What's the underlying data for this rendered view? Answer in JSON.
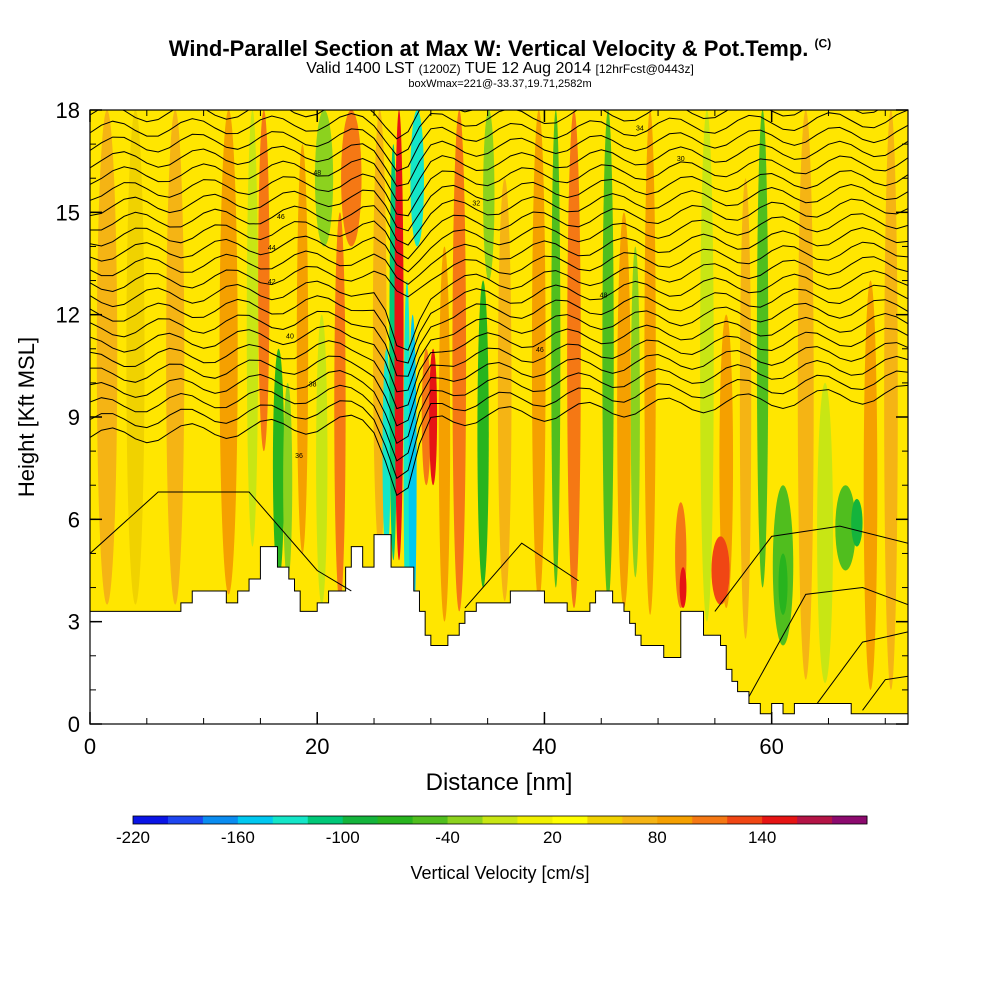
{
  "header": {
    "title": "Wind-Parallel Section at Max W: Vertical Velocity & Pot.Temp.",
    "copyright": "(C)",
    "valid_prefix": "Valid 1400 LST",
    "valid_utc": "(1200Z)",
    "valid_date": "TUE 12 Aug 2014",
    "forecast": "[12hrFcst@0443z]",
    "box_info": "boxWmax=221@-33.37,19.71,2582m"
  },
  "chart_data": {
    "type": "heatmap",
    "title": "Wind-Parallel Section at Max W: Vertical Velocity & Pot.Temp.",
    "xlabel": "Distance [nm]",
    "ylabel": "Height [Kft MSL]",
    "xlim": [
      0,
      72
    ],
    "ylim": [
      0,
      18
    ],
    "x_ticks": [
      0,
      20,
      40,
      60
    ],
    "x_tick_labels": [
      "0",
      "20",
      "40",
      "60"
    ],
    "y_ticks": [
      0,
      3,
      6,
      9,
      12,
      15,
      18
    ],
    "y_tick_labels": [
      "0",
      "3",
      "6",
      "9",
      "12",
      "15",
      "18"
    ],
    "colorbar": {
      "label": "Vertical Velocity [cm/s]",
      "tick_labels": [
        "-220",
        "-160",
        "-100",
        "-40",
        "20",
        "80",
        "140"
      ],
      "tick_values": [
        -220,
        -160,
        -100,
        -40,
        20,
        80,
        140
      ],
      "levels": [
        -220,
        -200,
        -180,
        -160,
        -140,
        -120,
        -100,
        -80,
        -60,
        -40,
        -20,
        0,
        20,
        40,
        60,
        80,
        100,
        120,
        140,
        160,
        180
      ],
      "colors": [
        "#0a14e6",
        "#1e46f0",
        "#0a8cf0",
        "#00c8f0",
        "#14e6c8",
        "#00c878",
        "#14b43c",
        "#28b41e",
        "#50be1e",
        "#8cd21e",
        "#c8e614",
        "#f0f000",
        "#ffff00",
        "#f0d200",
        "#f5b414",
        "#f5a000",
        "#f57814",
        "#f04614",
        "#e61414",
        "#b41446",
        "#8c0a6e"
      ]
    },
    "terrain": [
      [
        0,
        3.3
      ],
      [
        8,
        3.3
      ],
      [
        8,
        3.55
      ],
      [
        9,
        3.55
      ],
      [
        9,
        3.9
      ],
      [
        12,
        3.9
      ],
      [
        12,
        3.55
      ],
      [
        13,
        3.55
      ],
      [
        13,
        3.9
      ],
      [
        14,
        3.9
      ],
      [
        14,
        4.25
      ],
      [
        15,
        4.25
      ],
      [
        15,
        5.2
      ],
      [
        16.5,
        5.2
      ],
      [
        16.5,
        4.6
      ],
      [
        17.5,
        4.6
      ],
      [
        17.5,
        4.25
      ],
      [
        18,
        4.25
      ],
      [
        18,
        3.9
      ],
      [
        18.5,
        3.9
      ],
      [
        18.5,
        3.3
      ],
      [
        20,
        3.3
      ],
      [
        20,
        3.55
      ],
      [
        21,
        3.55
      ],
      [
        21,
        3.9
      ],
      [
        22.5,
        3.9
      ],
      [
        22.5,
        4.6
      ],
      [
        23,
        4.6
      ],
      [
        23,
        5.2
      ],
      [
        24,
        5.2
      ],
      [
        24,
        4.6
      ],
      [
        25,
        4.6
      ],
      [
        25,
        5.55
      ],
      [
        26.5,
        5.55
      ],
      [
        26.5,
        4.6
      ],
      [
        28.5,
        4.6
      ],
      [
        28.5,
        3.9
      ],
      [
        29,
        3.9
      ],
      [
        29,
        3.3
      ],
      [
        29.5,
        3.3
      ],
      [
        29.5,
        2.6
      ],
      [
        30,
        2.6
      ],
      [
        30,
        2.3
      ],
      [
        31.5,
        2.3
      ],
      [
        31.5,
        2.6
      ],
      [
        32.5,
        2.6
      ],
      [
        32.5,
        2.95
      ],
      [
        33,
        2.95
      ],
      [
        33,
        3.3
      ],
      [
        34,
        3.3
      ],
      [
        34,
        3.55
      ],
      [
        37,
        3.55
      ],
      [
        37,
        3.9
      ],
      [
        40,
        3.9
      ],
      [
        40,
        3.55
      ],
      [
        42,
        3.55
      ],
      [
        42,
        3.3
      ],
      [
        44,
        3.3
      ],
      [
        44,
        3.55
      ],
      [
        44.5,
        3.55
      ],
      [
        44.5,
        3.9
      ],
      [
        46,
        3.9
      ],
      [
        46,
        3.55
      ],
      [
        47,
        3.55
      ],
      [
        47,
        3.3
      ],
      [
        47.5,
        3.3
      ],
      [
        47.5,
        2.95
      ],
      [
        48,
        2.95
      ],
      [
        48,
        2.6
      ],
      [
        48.5,
        2.6
      ],
      [
        48.5,
        2.3
      ],
      [
        50.5,
        2.3
      ],
      [
        50.5,
        1.95
      ],
      [
        52,
        1.95
      ],
      [
        52,
        3.3
      ],
      [
        54,
        3.3
      ],
      [
        54,
        2.6
      ],
      [
        55.5,
        2.6
      ],
      [
        55.5,
        2.3
      ],
      [
        56,
        2.3
      ],
      [
        56,
        1.6
      ],
      [
        56.5,
        1.6
      ],
      [
        56.5,
        1.25
      ],
      [
        57,
        1.25
      ],
      [
        57,
        0.95
      ],
      [
        58,
        0.95
      ],
      [
        58,
        0.6
      ],
      [
        59,
        0.6
      ],
      [
        59,
        0.3
      ],
      [
        60,
        0.3
      ],
      [
        60,
        0.6
      ],
      [
        61,
        0.6
      ],
      [
        61,
        0.3
      ],
      [
        62,
        0.3
      ],
      [
        62,
        0.6
      ],
      [
        67,
        0.6
      ],
      [
        67,
        0.3
      ],
      [
        72,
        0.3
      ]
    ],
    "theta_contour_labels": [
      "48",
      "46",
      "44",
      "42",
      "40",
      "38",
      "36",
      "34",
      "32",
      "30"
    ]
  }
}
